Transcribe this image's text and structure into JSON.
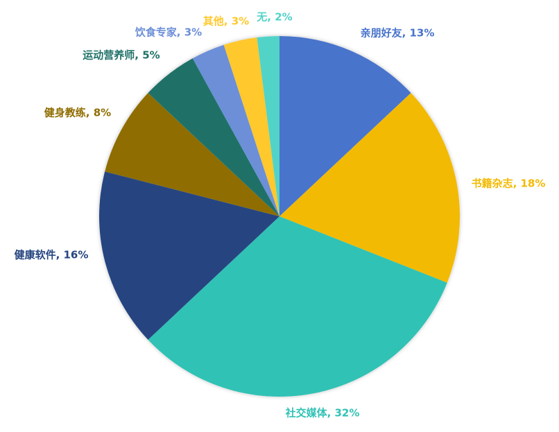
{
  "chart_data": {
    "type": "pie",
    "values": [
      13,
      18,
      32,
      16,
      8,
      5,
      3,
      3,
      2
    ],
    "value_labels": [
      "亲朋好友, 13%",
      "书籍杂志, 18%",
      "社交媒体, 32%",
      "健康软件, 16%",
      "健身教练, 8%",
      "运动营养师, 5%",
      "饮食专家, 3%",
      "其他, 3%",
      "无, 2%"
    ],
    "colors": [
      "#4874cb",
      "#f2ba02",
      "#30c2b5",
      "#264580",
      "#8f6d00",
      "#1f7168",
      "#6c8fd7",
      "#ffc82c",
      "#52d3c8"
    ]
  }
}
